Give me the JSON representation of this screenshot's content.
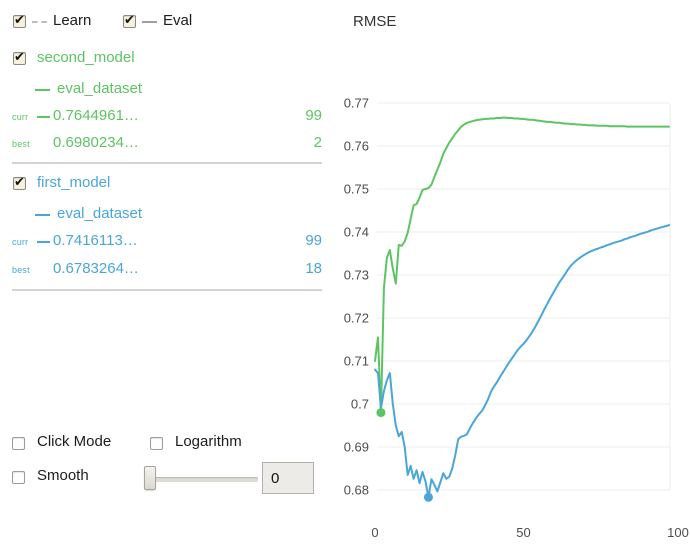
{
  "header": {
    "learn_label": "Learn",
    "eval_label": "Eval",
    "learn_checked": true,
    "eval_checked": true
  },
  "models": [
    {
      "name": "second_model",
      "checked": true,
      "color": "#5dc463",
      "dataset_label": "eval_dataset",
      "curr_label": "curr",
      "best_label": "best",
      "curr_value": "0.7644961…",
      "curr_iteration": "99",
      "best_value": "0.6980234…",
      "best_iteration": "2"
    },
    {
      "name": "first_model",
      "checked": true,
      "color": "#4aa6d8",
      "dataset_label": "eval_dataset",
      "curr_label": "curr",
      "best_label": "best",
      "curr_value": "0.7416113…",
      "curr_iteration": "99",
      "best_value": "0.6783264…",
      "best_iteration": "18"
    }
  ],
  "controls": {
    "click_mode_label": "Click Mode",
    "click_mode_checked": false,
    "logarithm_label": "Logarithm",
    "logarithm_checked": false,
    "smooth_label": "Smooth",
    "smooth_checked": false,
    "smooth_value": "0"
  },
  "chart_data": {
    "type": "line",
    "title": "RMSE",
    "xlabel": "",
    "ylabel": "",
    "xlim": [
      0,
      100
    ],
    "x_ticks": [
      0,
      50,
      100
    ],
    "y_ticks": [
      0.68,
      0.69,
      0.7,
      0.71,
      0.72,
      0.73,
      0.74,
      0.75,
      0.76,
      0.77
    ],
    "grid": true,
    "legend_position": "none",
    "series": [
      {
        "name": "second_model eval_dataset",
        "color": "#5dc463",
        "best_point": {
          "x": 2,
          "y": 0.698
        },
        "values": [
          0.71,
          0.7155,
          0.698,
          0.727,
          0.734,
          0.7358,
          0.7315,
          0.728,
          0.737,
          0.7368,
          0.7378,
          0.7398,
          0.743,
          0.7462,
          0.7465,
          0.748,
          0.7498,
          0.75,
          0.7502,
          0.751,
          0.7528,
          0.7545,
          0.7562,
          0.7582,
          0.7595,
          0.7608,
          0.7618,
          0.7628,
          0.7636,
          0.7645,
          0.765,
          0.7654,
          0.7656,
          0.7658,
          0.766,
          0.7661,
          0.7662,
          0.7663,
          0.7663,
          0.7664,
          0.7664,
          0.7665,
          0.7665,
          0.7666,
          0.7666,
          0.7665,
          0.7665,
          0.7664,
          0.7664,
          0.7663,
          0.7663,
          0.7662,
          0.7661,
          0.7661,
          0.766,
          0.7659,
          0.7658,
          0.7657,
          0.7656,
          0.7656,
          0.7655,
          0.7654,
          0.7654,
          0.7653,
          0.7652,
          0.7652,
          0.7651,
          0.7651,
          0.765,
          0.765,
          0.7649,
          0.7649,
          0.7648,
          0.7648,
          0.7648,
          0.7647,
          0.7647,
          0.7647,
          0.7647,
          0.7646,
          0.7646,
          0.7646,
          0.7646,
          0.7646,
          0.7646,
          0.7645,
          0.7645,
          0.7645,
          0.7645,
          0.7645,
          0.7645,
          0.7645,
          0.7645,
          0.7645,
          0.7645,
          0.7645,
          0.7645,
          0.7645,
          0.7645,
          0.7645
        ]
      },
      {
        "name": "first_model eval_dataset",
        "color": "#4aa6d8",
        "best_point": {
          "x": 18,
          "y": 0.6783
        },
        "values": [
          0.708,
          0.7072,
          0.699,
          0.703,
          0.7055,
          0.7072,
          0.7,
          0.695,
          0.6925,
          0.6935,
          0.69,
          0.6835,
          0.6856,
          0.6826,
          0.6846,
          0.6816,
          0.6842,
          0.682,
          0.6783,
          0.6825,
          0.6812,
          0.6797,
          0.6818,
          0.6839,
          0.6826,
          0.6831,
          0.685,
          0.688,
          0.6918,
          0.6924,
          0.6926,
          0.693,
          0.6944,
          0.6956,
          0.6967,
          0.6976,
          0.6984,
          0.6996,
          0.701,
          0.7028,
          0.704,
          0.705,
          0.7062,
          0.7073,
          0.7084,
          0.7095,
          0.7105,
          0.7115,
          0.7125,
          0.7133,
          0.714,
          0.7148,
          0.7158,
          0.7168,
          0.718,
          0.7193,
          0.7206,
          0.722,
          0.7233,
          0.7246,
          0.7258,
          0.727,
          0.7282,
          0.7292,
          0.7302,
          0.7313,
          0.7322,
          0.7329,
          0.7335,
          0.734,
          0.7345,
          0.7349,
          0.7353,
          0.7356,
          0.7359,
          0.7361,
          0.7364,
          0.7366,
          0.7369,
          0.7371,
          0.7374,
          0.7376,
          0.7378,
          0.738,
          0.7383,
          0.7385,
          0.7388,
          0.739,
          0.7392,
          0.7395,
          0.7397,
          0.7399,
          0.7401,
          0.7404,
          0.7406,
          0.7408,
          0.741,
          0.7412,
          0.7414,
          0.7416
        ]
      }
    ]
  }
}
